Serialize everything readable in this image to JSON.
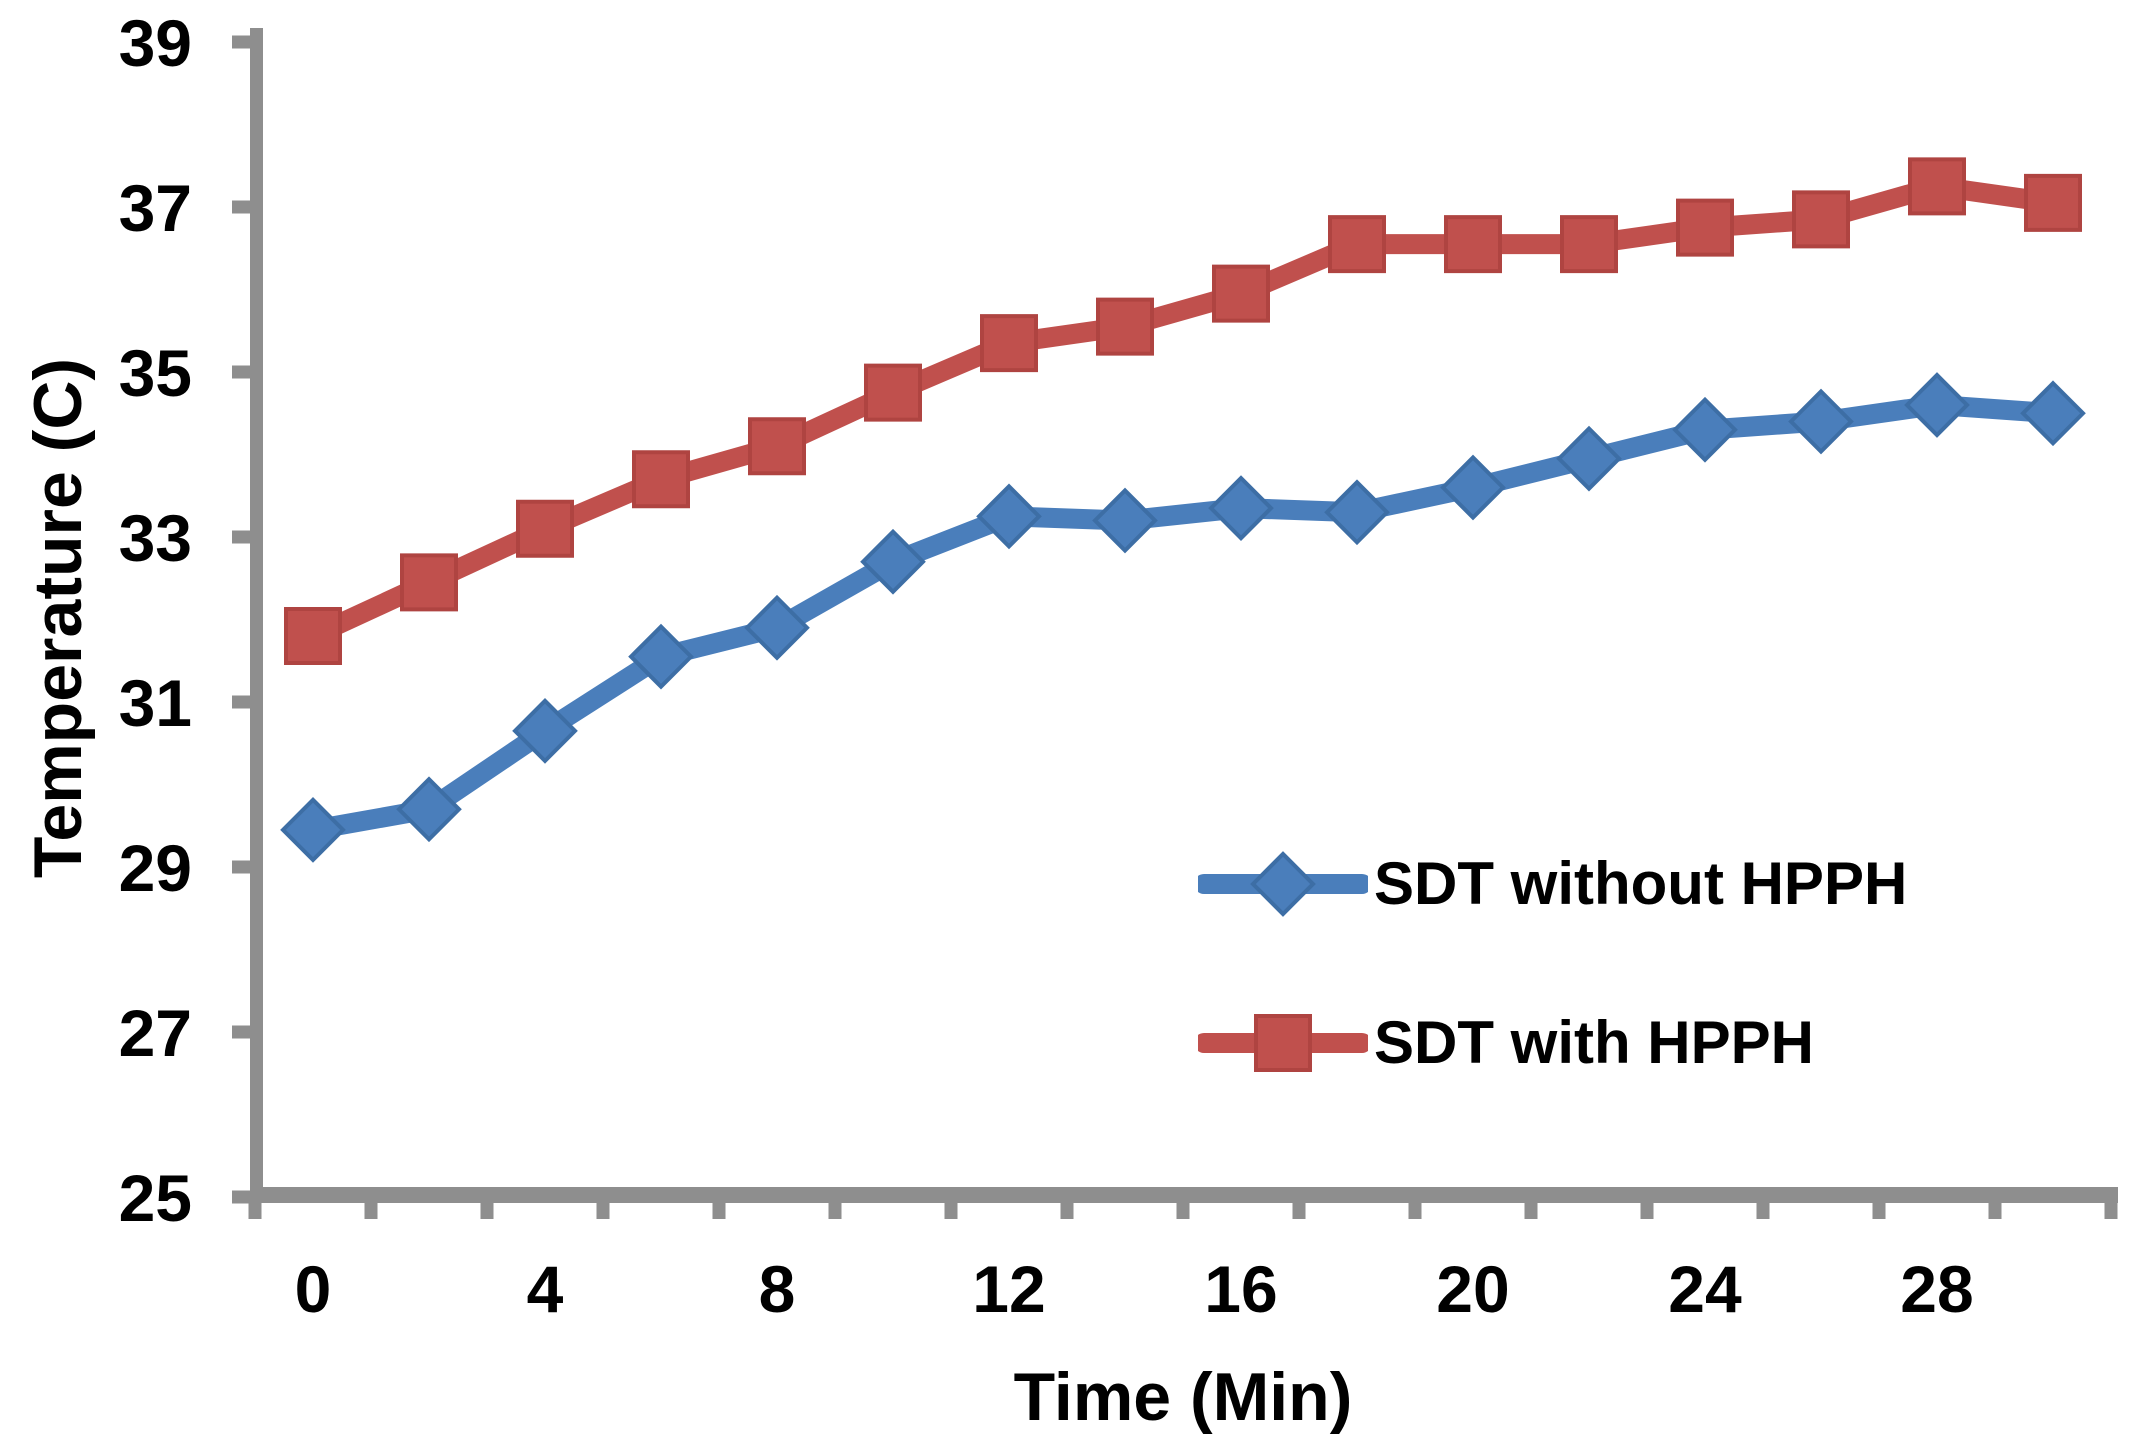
{
  "chart_data": {
    "type": "line",
    "x": [
      0,
      2,
      4,
      6,
      8,
      10,
      12,
      14,
      16,
      18,
      20,
      22,
      24,
      26,
      28,
      30
    ],
    "x_tick_labels": [
      0,
      4,
      8,
      12,
      16,
      20,
      24,
      28
    ],
    "xlabel": "Time (Min)",
    "ylabel": "Temperature (C)",
    "y_ticks": [
      25,
      27,
      29,
      31,
      33,
      35,
      37,
      39
    ],
    "ylim": [
      25,
      39
    ],
    "grid": false,
    "legend_position": "inside-lower-right",
    "axis_color": "#8E8E8E",
    "text_color": "#000000",
    "series": [
      {
        "name": "SDT without HPPH",
        "marker": "diamond",
        "color": "#4A7EBB",
        "marker_edge": "#3D6EA5",
        "values": [
          29.45,
          29.7,
          30.65,
          31.55,
          31.9,
          32.7,
          33.25,
          33.2,
          33.35,
          33.3,
          33.6,
          33.95,
          34.3,
          34.4,
          34.6,
          34.5
        ]
      },
      {
        "name": "SDT with HPPH",
        "marker": "square",
        "color": "#C0504D",
        "marker_edge": "#AF4441",
        "values": [
          31.8,
          32.45,
          33.1,
          33.7,
          34.1,
          34.75,
          35.35,
          35.55,
          35.95,
          36.55,
          36.55,
          36.55,
          36.75,
          36.85,
          37.25,
          37.05
        ]
      }
    ]
  }
}
